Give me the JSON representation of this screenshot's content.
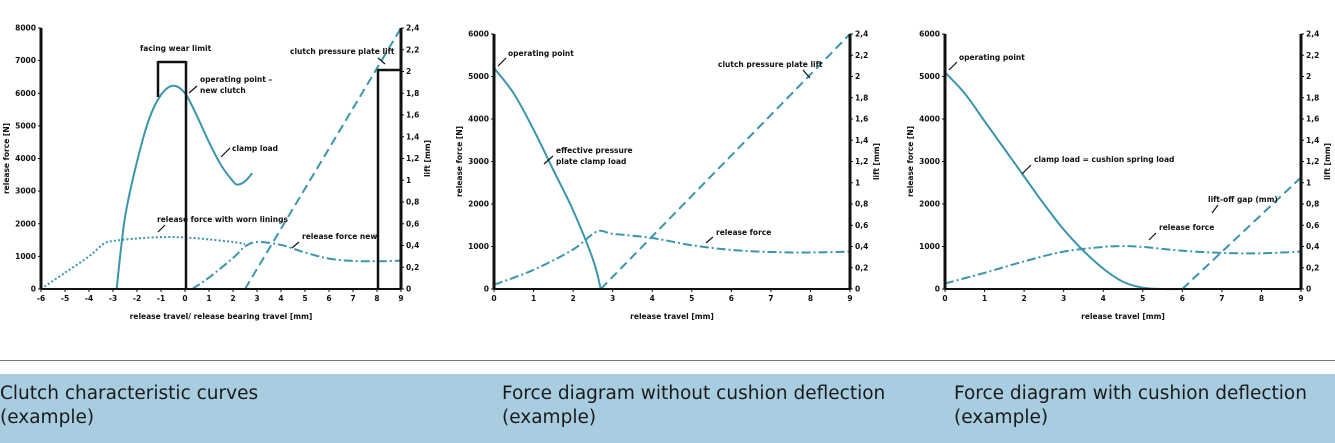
{
  "captions": [
    {
      "line1": "Clutch characteristic curves",
      "line2": "(example)"
    },
    {
      "line1": "Force diagram without cushion deflection",
      "line2": "(example)"
    },
    {
      "line1": "Force diagram with cushion deflection",
      "line2": "(example)"
    }
  ],
  "colors": {
    "curve": "#3a95ad",
    "axis": "#111111"
  },
  "chart_data": [
    {
      "type": "line",
      "xlabel": "release travel/ release bearing travel [mm]",
      "ylabel": "release force [N]",
      "y2label": "lift [mm]",
      "xlim": [
        -6,
        9
      ],
      "ylim": [
        0,
        8000
      ],
      "y2lim": [
        0,
        2.4
      ],
      "xticks": [
        "-6",
        "-5",
        "-4",
        "-3",
        "-2",
        "-1",
        "0",
        "1",
        "2",
        "3",
        "4",
        "5",
        "6",
        "7",
        "8",
        "9"
      ],
      "yticks": [
        "0",
        "1000",
        "2000",
        "3000",
        "4000",
        "5000",
        "6000",
        "7000",
        "8000"
      ],
      "y2ticks": [
        "0",
        "0,2",
        "0,4",
        "0,6",
        "0,8",
        "1",
        "1,2",
        "1,4",
        "1,6",
        "1,8",
        "2",
        "2,2",
        "2,4"
      ],
      "series": [
        {
          "name": "clamp load",
          "style": "solid",
          "axis": "y",
          "points": [
            [
              -2.85,
              0
            ],
            [
              -2.5,
              2200
            ],
            [
              -2,
              3900
            ],
            [
              -1.5,
              5200
            ],
            [
              -1,
              5950
            ],
            [
              -0.5,
              6230
            ],
            [
              0,
              6000
            ],
            [
              0.5,
              5300
            ],
            [
              1,
              4500
            ],
            [
              1.5,
              3800
            ],
            [
              2,
              3300
            ],
            [
              2.2,
              3200
            ],
            [
              2.5,
              3300
            ],
            [
              2.8,
              3550
            ]
          ]
        },
        {
          "name": "release force with worn linings",
          "style": "dotted",
          "axis": "y",
          "points": [
            [
              -6,
              0
            ],
            [
              -5,
              500
            ],
            [
              -4,
              1000
            ],
            [
              -3.4,
              1380
            ],
            [
              -3,
              1470
            ],
            [
              -2,
              1550
            ],
            [
              -1,
              1590
            ],
            [
              0,
              1580
            ],
            [
              1,
              1520
            ],
            [
              2,
              1440
            ],
            [
              2.5,
              1380
            ]
          ]
        },
        {
          "name": "release force new",
          "style": "dashdot",
          "axis": "y",
          "points": [
            [
              0.3,
              0
            ],
            [
              1,
              350
            ],
            [
              2,
              950
            ],
            [
              2.5,
              1300
            ],
            [
              3,
              1440
            ],
            [
              4,
              1350
            ],
            [
              5,
              1120
            ],
            [
              6,
              930
            ],
            [
              7,
              860
            ],
            [
              8,
              850
            ],
            [
              9,
              870
            ]
          ]
        },
        {
          "name": "clutch pressure plate lift",
          "style": "dashed",
          "axis": "y2",
          "points": [
            [
              2.5,
              0
            ],
            [
              9,
              2.4
            ]
          ]
        }
      ],
      "annotations": [
        "facing wear limit",
        "operating point –",
        "new clutch",
        "clamp load",
        "release force with worn linings",
        "release force new",
        "clutch pressure plate lift"
      ]
    },
    {
      "type": "line",
      "xlabel": "release travel  [mm]",
      "ylabel": "release force [N]",
      "y2label": "lift [mm]",
      "xlim": [
        0,
        9
      ],
      "ylim": [
        0,
        6000
      ],
      "y2lim": [
        0,
        2.4
      ],
      "xticks": [
        "0",
        "1",
        "2",
        "3",
        "4",
        "5",
        "6",
        "7",
        "8",
        "9"
      ],
      "yticks": [
        "0",
        "1000",
        "2000",
        "3000",
        "4000",
        "5000",
        "6000"
      ],
      "y2ticks": [
        "0",
        "0,2",
        "0,4",
        "0,6",
        "0,8",
        "1",
        "1,2",
        "1,4",
        "1,6",
        "1,8",
        "2",
        "2,2",
        "2,4"
      ],
      "series": [
        {
          "name": "effective pressure plate clamp load",
          "style": "solid",
          "axis": "y",
          "points": [
            [
              0,
              5200
            ],
            [
              0.5,
              4600
            ],
            [
              1,
              3750
            ],
            [
              1.5,
              2800
            ],
            [
              2,
              1850
            ],
            [
              2.5,
              700
            ],
            [
              2.7,
              0
            ]
          ]
        },
        {
          "name": "release force",
          "style": "dashdot",
          "axis": "y",
          "points": [
            [
              0,
              100
            ],
            [
              1,
              450
            ],
            [
              2,
              930
            ],
            [
              2.6,
              1350
            ],
            [
              3,
              1300
            ],
            [
              4,
              1200
            ],
            [
              5,
              1030
            ],
            [
              6,
              920
            ],
            [
              7,
              870
            ],
            [
              8,
              860
            ],
            [
              9,
              880
            ]
          ]
        },
        {
          "name": "clutch pressure plate lift",
          "style": "dashed",
          "axis": "y2",
          "points": [
            [
              2.7,
              0
            ],
            [
              9,
              2.4
            ]
          ]
        }
      ],
      "annotations": [
        "operating point",
        "clutch pressure plate lift",
        "effective pressure",
        "plate clamp load",
        "release force"
      ]
    },
    {
      "type": "line",
      "xlabel": "release travel [mm]",
      "ylabel": "release force [N]",
      "y2label": "lift [mm]",
      "xlim": [
        0,
        9
      ],
      "ylim": [
        0,
        6000
      ],
      "y2lim": [
        0,
        2.4
      ],
      "xticks": [
        "0",
        "1",
        "2",
        "3",
        "4",
        "5",
        "6",
        "7",
        "8",
        "9"
      ],
      "yticks": [
        "0",
        "1000",
        "2000",
        "3000",
        "4000",
        "5000",
        "6000"
      ],
      "y2ticks": [
        "0",
        "0,2",
        "0,4",
        "0,6",
        "0,8",
        "1",
        "1,2",
        "1,4",
        "1,6",
        "1,8",
        "2",
        "2,2",
        "2,4"
      ],
      "series": [
        {
          "name": "clamp load = cushion spring load",
          "style": "solid",
          "axis": "y",
          "points": [
            [
              0,
              5100
            ],
            [
              0.5,
              4600
            ],
            [
              1,
              3950
            ],
            [
              1.5,
              3300
            ],
            [
              2,
              2650
            ],
            [
              2.5,
              2000
            ],
            [
              3,
              1400
            ],
            [
              3.5,
              900
            ],
            [
              4,
              480
            ],
            [
              4.5,
              170
            ],
            [
              5,
              30
            ],
            [
              5.5,
              0
            ],
            [
              6,
              0
            ]
          ]
        },
        {
          "name": "release force",
          "style": "dashdot",
          "axis": "y",
          "points": [
            [
              0,
              130
            ],
            [
              1,
              380
            ],
            [
              2,
              650
            ],
            [
              3,
              880
            ],
            [
              4,
              990
            ],
            [
              4.5,
              1010
            ],
            [
              5,
              990
            ],
            [
              6,
              900
            ],
            [
              7,
              850
            ],
            [
              8,
              840
            ],
            [
              9,
              880
            ]
          ]
        },
        {
          "name": "lift-off gap (mm)",
          "style": "dashed",
          "axis": "y2",
          "points": [
            [
              6,
              0
            ],
            [
              9,
              1.05
            ]
          ]
        }
      ],
      "annotations": [
        "operating point",
        "clamp load = cushion spring load",
        "lift-off gap (mm)",
        "release force"
      ]
    }
  ]
}
